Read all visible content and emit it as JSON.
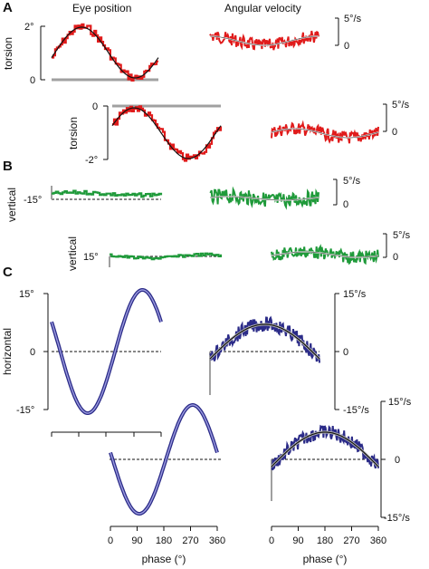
{
  "headers": {
    "left": "Eye position",
    "right": "Angular velocity"
  },
  "panel_letters": [
    "A",
    "B",
    "C"
  ],
  "colors": {
    "torsion_data": "#e01b1b",
    "vertical_data": "#1f9a3a",
    "horizontal_data": "#2b2b88",
    "horizontal_fill": "#8a8ad6",
    "fit": "#111111",
    "reference": "#a0a0a0",
    "velocity_fit": "#ffffff"
  },
  "labels": {
    "torsion": "torsion",
    "vertical": "vertical",
    "horizontal": "horizontal",
    "phase": "phase (°)"
  },
  "ticks": {
    "a1_top": "2°",
    "a1_bottom": "0",
    "a2_top": "0",
    "a2_bottom": "-2°",
    "vel_5": "5°/s",
    "vel_0": "0",
    "b1_level": "-15°",
    "b2_level": "15°",
    "c_pos_top": "15°",
    "c_pos_mid": "0",
    "c_pos_bottom": "-15°",
    "c_vel_top": "15°/s",
    "c_vel_mid": "0",
    "c_vel_bottom": "-15°/s",
    "phase_ticks": [
      "0",
      "90",
      "180",
      "270",
      "360"
    ]
  },
  "chart_data": [
    {
      "type": "line",
      "panel": "A",
      "row": 1,
      "column": "Eye position",
      "ylabel": "torsion",
      "x": [
        0,
        90,
        180,
        270,
        360
      ],
      "y": [
        1.0,
        0.0,
        0.7,
        1.9,
        1.0
      ],
      "yticks": [
        "0",
        "2°"
      ],
      "ylim": [
        0,
        2
      ]
    },
    {
      "type": "line",
      "panel": "A",
      "row": 1,
      "column": "Angular velocity",
      "x": [
        0,
        90,
        180,
        270,
        360
      ],
      "y": [
        1.8,
        0.9,
        0.4,
        1.3,
        1.8
      ],
      "yticks": [
        "0",
        "5°/s"
      ],
      "ylim": [
        0,
        5
      ]
    },
    {
      "type": "line",
      "panel": "A",
      "row": 2,
      "column": "Eye position",
      "ylabel": "torsion",
      "x": [
        0,
        90,
        180,
        270,
        360
      ],
      "y": [
        -1.2,
        -0.1,
        -1.0,
        -2.0,
        -1.2
      ],
      "yticks": [
        "-2°",
        "0"
      ],
      "ylim": [
        -2,
        0
      ]
    },
    {
      "type": "line",
      "panel": "A",
      "row": 2,
      "column": "Angular velocity",
      "x": [
        0,
        90,
        180,
        270,
        360
      ],
      "y": [
        0.2,
        1.6,
        1.1,
        0.3,
        0.2
      ],
      "yticks": [
        "0",
        "5°/s"
      ],
      "ylim": [
        0,
        5
      ]
    },
    {
      "type": "line",
      "panel": "B",
      "row": 1,
      "column": "Eye position",
      "ylabel": "vertical",
      "level": "-15°"
    },
    {
      "type": "line",
      "panel": "B",
      "row": 1,
      "column": "Angular velocity",
      "yticks": [
        "0",
        "5°/s"
      ]
    },
    {
      "type": "line",
      "panel": "B",
      "row": 2,
      "column": "Eye position",
      "ylabel": "vertical",
      "level": "15°"
    },
    {
      "type": "line",
      "panel": "B",
      "row": 2,
      "column": "Angular velocity",
      "yticks": [
        "0",
        "5°/s"
      ]
    },
    {
      "type": "line",
      "panel": "C",
      "row": 1,
      "column": "Eye position",
      "ylabel": "horizontal",
      "x": [
        0,
        90,
        180,
        270,
        360
      ],
      "y": [
        2,
        -17,
        0,
        17,
        0
      ],
      "yticks": [
        "-15°",
        "0",
        "15°"
      ],
      "ylim": [
        -15,
        15
      ]
    },
    {
      "type": "line",
      "panel": "C",
      "row": 1,
      "column": "Angular velocity",
      "x": [
        0,
        90,
        180,
        270,
        360
      ],
      "y": [
        -9,
        0,
        9,
        0,
        -9
      ],
      "yticks": [
        "-15/s",
        "0",
        "15°/s"
      ],
      "ylim": [
        -15,
        15
      ]
    },
    {
      "type": "line",
      "panel": "C",
      "row": 2,
      "column": "Eye position",
      "xlabel": "phase (°)",
      "x": [
        0,
        90,
        180,
        270,
        360
      ],
      "y": [
        0,
        -16,
        0,
        15,
        0
      ],
      "xticks": [
        "0",
        "90",
        "180",
        "270",
        "360"
      ]
    },
    {
      "type": "line",
      "panel": "C",
      "row": 2,
      "column": "Angular velocity",
      "xlabel": "phase (°)",
      "x": [
        0,
        90,
        180,
        270,
        360
      ],
      "y": [
        -9,
        0,
        9,
        0,
        -9
      ],
      "xticks": [
        "0",
        "90",
        "180",
        "270",
        "360"
      ],
      "yticks": [
        "-15°/s",
        "0",
        "15°/s"
      ],
      "ylim": [
        -15,
        15
      ]
    }
  ]
}
